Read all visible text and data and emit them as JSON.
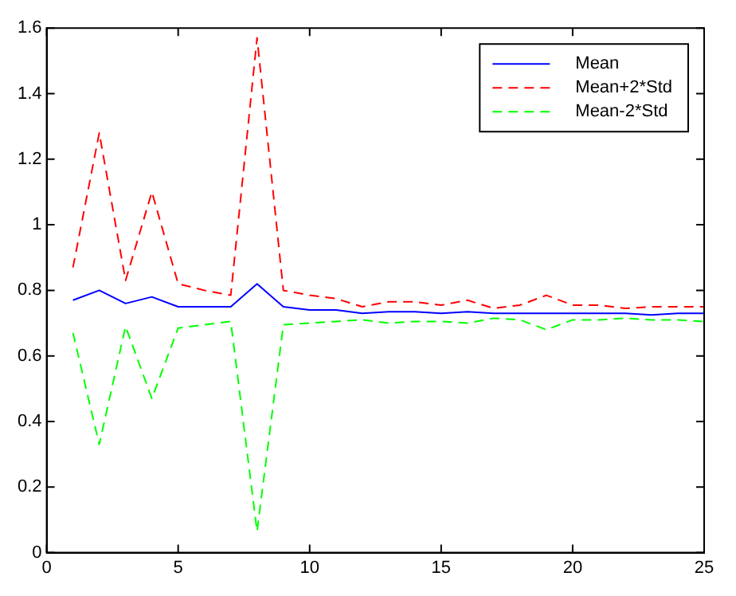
{
  "chart_data": {
    "type": "line",
    "x": [
      1,
      2,
      3,
      4,
      5,
      6,
      7,
      8,
      9,
      10,
      11,
      12,
      13,
      14,
      15,
      16,
      17,
      18,
      19,
      20,
      21,
      22,
      23,
      24,
      25
    ],
    "xlim": [
      0,
      25
    ],
    "xticks": [
      0,
      5,
      10,
      15,
      20,
      25
    ],
    "ylim": [
      0,
      1.6
    ],
    "yticks": [
      0,
      {
        "value": 0.2,
        "label": "0.2"
      },
      {
        "value": 0.4,
        "label": "0.4"
      },
      {
        "value": 0.6,
        "label": "0.6"
      },
      {
        "value": 0.8,
        "label": "0.8"
      },
      1,
      {
        "value": 1.2,
        "label": "1.2"
      },
      {
        "value": 1.4,
        "label": "1.4"
      },
      {
        "value": 1.6,
        "label": "1.6"
      }
    ],
    "grid": false,
    "legend": "top right",
    "marker": "none",
    "series": [
      {
        "name": "Mean",
        "color": "#0000ff",
        "line_style": "solid",
        "values": [
          0.77,
          0.8,
          0.76,
          0.78,
          0.75,
          0.75,
          0.75,
          0.82,
          0.75,
          0.74,
          0.74,
          0.73,
          0.735,
          0.735,
          0.73,
          0.735,
          0.73,
          0.73,
          0.73,
          0.73,
          0.73,
          0.73,
          0.725,
          0.73,
          0.73
        ]
      },
      {
        "name": "Mean+2*Std",
        "color": "#ff0000",
        "line_style": "dashed",
        "values": [
          0.87,
          1.28,
          0.83,
          1.1,
          0.82,
          0.8,
          0.785,
          1.57,
          0.8,
          0.785,
          0.775,
          0.75,
          0.765,
          0.765,
          0.755,
          0.77,
          0.745,
          0.755,
          0.785,
          0.755,
          0.755,
          0.745,
          0.75,
          0.75,
          0.75
        ]
      },
      {
        "name": "Mean-2*Std",
        "color": "#00ff00",
        "line_style": "dashed",
        "values": [
          0.67,
          0.33,
          0.69,
          0.47,
          0.685,
          0.695,
          0.705,
          0.065,
          0.695,
          0.7,
          0.705,
          0.71,
          0.7,
          0.705,
          0.705,
          0.7,
          0.715,
          0.71,
          0.68,
          0.71,
          0.71,
          0.715,
          0.71,
          0.71,
          0.705
        ]
      }
    ]
  }
}
